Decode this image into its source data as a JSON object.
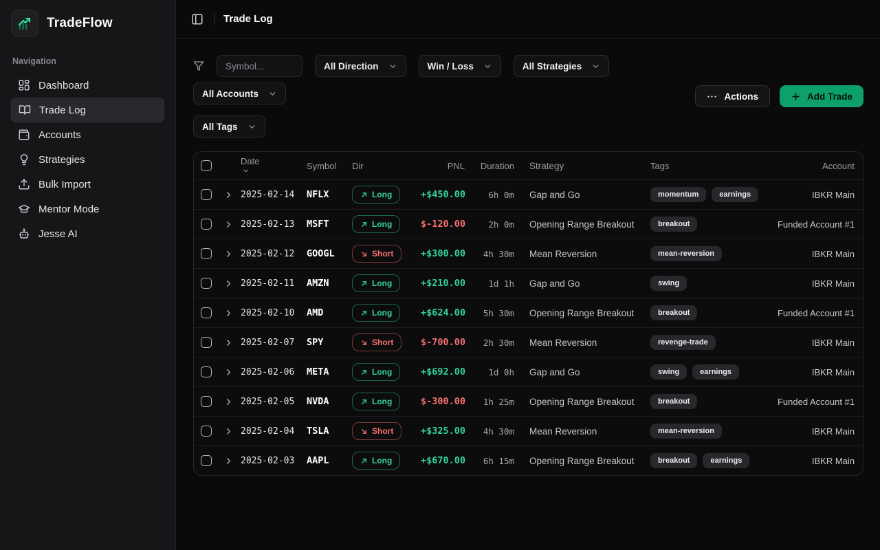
{
  "app": {
    "name": "TradeFlow",
    "logo_icon": "trending-up-chart-icon"
  },
  "colors": {
    "accent": "#0da06a",
    "positive": "#34d399",
    "negative": "#f87171",
    "sidebar_bg": "#161618",
    "page_bg": "#0a0a0a"
  },
  "sidebar": {
    "section_label": "Navigation",
    "items": [
      {
        "label": "Dashboard",
        "icon": "dashboard-grid-icon",
        "active": false
      },
      {
        "label": "Trade Log",
        "icon": "book-open-icon",
        "active": true
      },
      {
        "label": "Accounts",
        "icon": "wallet-icon",
        "active": false
      },
      {
        "label": "Strategies",
        "icon": "lightbulb-icon",
        "active": false
      },
      {
        "label": "Bulk Import",
        "icon": "upload-icon",
        "active": false
      },
      {
        "label": "Mentor Mode",
        "icon": "graduation-cap-icon",
        "active": false
      },
      {
        "label": "Jesse AI",
        "icon": "bot-icon",
        "active": false
      }
    ]
  },
  "topbar": {
    "title": "Trade Log",
    "toggle_icon": "panel-left-icon"
  },
  "filters": {
    "filter_icon": "funnel-icon",
    "symbol_placeholder": "Symbol...",
    "dropdowns": [
      {
        "label": "All Direction"
      },
      {
        "label": "Win / Loss"
      },
      {
        "label": "All Strategies"
      },
      {
        "label": "All Accounts"
      },
      {
        "label": "All Tags"
      }
    ]
  },
  "actions": {
    "more_label": "Actions",
    "more_icon": "ellipsis-icon",
    "add_label": "Add Trade",
    "add_icon": "plus-icon"
  },
  "table": {
    "columns": [
      "Date",
      "Symbol",
      "Dir",
      "PNL",
      "Duration",
      "Strategy",
      "Tags",
      "Account"
    ],
    "sorted_column": "Date",
    "rows": [
      {
        "date": "2025-02-14",
        "symbol": "NFLX",
        "direction": "Long",
        "pnl": "+$450.00",
        "pnl_sign": "pos",
        "duration": "6h 0m",
        "strategy": "Gap and Go",
        "tags": [
          "momentum",
          "earnings"
        ],
        "account": "IBKR Main"
      },
      {
        "date": "2025-02-13",
        "symbol": "MSFT",
        "direction": "Long",
        "pnl": "$-120.00",
        "pnl_sign": "neg",
        "duration": "2h 0m",
        "strategy": "Opening Range Breakout",
        "tags": [
          "breakout"
        ],
        "account": "Funded Account #1"
      },
      {
        "date": "2025-02-12",
        "symbol": "GOOGL",
        "direction": "Short",
        "pnl": "+$300.00",
        "pnl_sign": "pos",
        "duration": "4h 30m",
        "strategy": "Mean Reversion",
        "tags": [
          "mean-reversion"
        ],
        "account": "IBKR Main"
      },
      {
        "date": "2025-02-11",
        "symbol": "AMZN",
        "direction": "Long",
        "pnl": "+$210.00",
        "pnl_sign": "pos",
        "duration": "1d 1h",
        "strategy": "Gap and Go",
        "tags": [
          "swing"
        ],
        "account": "IBKR Main"
      },
      {
        "date": "2025-02-10",
        "symbol": "AMD",
        "direction": "Long",
        "pnl": "+$624.00",
        "pnl_sign": "pos",
        "duration": "5h 30m",
        "strategy": "Opening Range Breakout",
        "tags": [
          "breakout"
        ],
        "account": "Funded Account #1"
      },
      {
        "date": "2025-02-07",
        "symbol": "SPY",
        "direction": "Short",
        "pnl": "$-700.00",
        "pnl_sign": "neg",
        "duration": "2h 30m",
        "strategy": "Mean Reversion",
        "tags": [
          "revenge-trade"
        ],
        "account": "IBKR Main"
      },
      {
        "date": "2025-02-06",
        "symbol": "META",
        "direction": "Long",
        "pnl": "+$692.00",
        "pnl_sign": "pos",
        "duration": "1d 0h",
        "strategy": "Gap and Go",
        "tags": [
          "swing",
          "earnings"
        ],
        "account": "IBKR Main"
      },
      {
        "date": "2025-02-05",
        "symbol": "NVDA",
        "direction": "Long",
        "pnl": "$-300.00",
        "pnl_sign": "neg",
        "duration": "1h 25m",
        "strategy": "Opening Range Breakout",
        "tags": [
          "breakout"
        ],
        "account": "Funded Account #1"
      },
      {
        "date": "2025-02-04",
        "symbol": "TSLA",
        "direction": "Short",
        "pnl": "+$325.00",
        "pnl_sign": "pos",
        "duration": "4h 30m",
        "strategy": "Mean Reversion",
        "tags": [
          "mean-reversion"
        ],
        "account": "IBKR Main"
      },
      {
        "date": "2025-02-03",
        "symbol": "AAPL",
        "direction": "Long",
        "pnl": "+$670.00",
        "pnl_sign": "pos",
        "duration": "6h 15m",
        "strategy": "Opening Range Breakout",
        "tags": [
          "breakout",
          "earnings"
        ],
        "account": "IBKR Main"
      }
    ]
  }
}
